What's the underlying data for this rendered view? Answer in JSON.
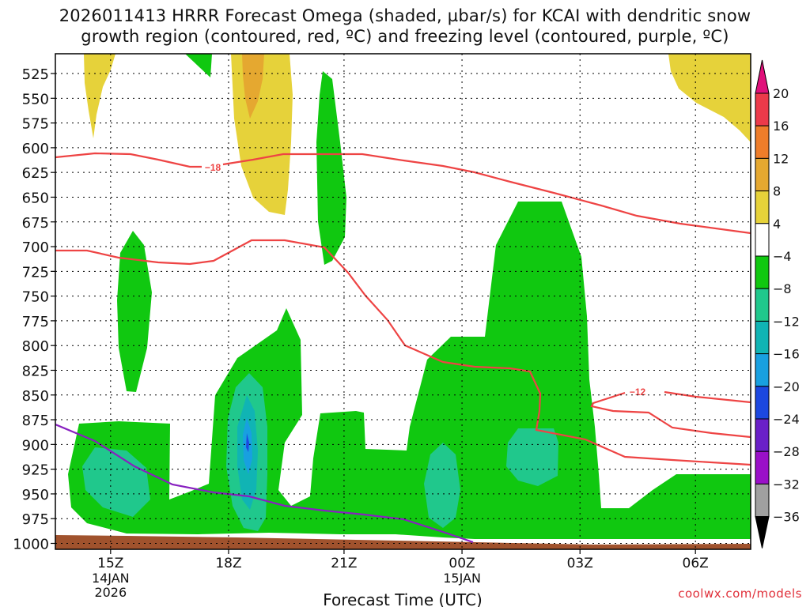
{
  "chart_data": {
    "type": "filled-contour",
    "title_line1": "2026011413 HRRR Forecast Omega (shaded, µbar/s) for KCAI with dendritic snow",
    "title_line2": "growth region (contoured, red, ºC) and freezing level (contoured, purple, ºC)",
    "xlabel": "Forecast Time (UTC)",
    "x_range_hours": [
      -2.2,
      25.5
    ],
    "y_range_hpa": [
      1006,
      505
    ],
    "x_ticks": [
      {
        "hour": 0,
        "label": "15Z",
        "sub1": "14JAN",
        "sub2": "2026"
      },
      {
        "hour": 4.7,
        "label": "18Z",
        "sub1": "",
        "sub2": ""
      },
      {
        "hour": 9.3,
        "label": "21Z",
        "sub1": "",
        "sub2": ""
      },
      {
        "hour": 14,
        "label": "00Z",
        "sub1": "15JAN",
        "sub2": ""
      },
      {
        "hour": 18.7,
        "label": "03Z",
        "sub1": "",
        "sub2": ""
      },
      {
        "hour": 23.3,
        "label": "06Z",
        "sub1": "",
        "sub2": ""
      }
    ],
    "y_ticks": [
      "525",
      "550",
      "575",
      "600",
      "625",
      "650",
      "675",
      "700",
      "725",
      "750",
      "775",
      "800",
      "825",
      "850",
      "875",
      "900",
      "925",
      "950",
      "975",
      "1000"
    ],
    "colorbar": {
      "labels": [
        "20",
        "16",
        "12",
        "8",
        "4",
        "−4",
        "−8",
        "−12",
        "−16",
        "−20",
        "−24",
        "−28",
        "−32",
        "−36"
      ],
      "colors": [
        "#ec3a4a",
        "#ee7d2a",
        "#e5a830",
        "#e6d23a",
        "#ffffff",
        "#10c810",
        "#20c88c",
        "#10b4b4",
        "#18a0e0",
        "#1c48e0",
        "#6a20c8",
        "#9a10c8",
        "#a0a0a0"
      ],
      "top_arrow_color": "#e0107a",
      "bottom_arrow_color": "#000000"
    },
    "contour_labels": {
      "red_upper": "−18",
      "red_lower": "−12"
    },
    "colors": {
      "red": "#ee4444",
      "purple": "#8820c0",
      "terrain": "#a0522d",
      "green": "#10c810",
      "teal": "#20c88c",
      "cyan": "#18b8c8",
      "blue": "#1880e0",
      "yellow": "#e6d23a",
      "orange": "#e5a830"
    }
  },
  "credit": "coolwx.com/models"
}
